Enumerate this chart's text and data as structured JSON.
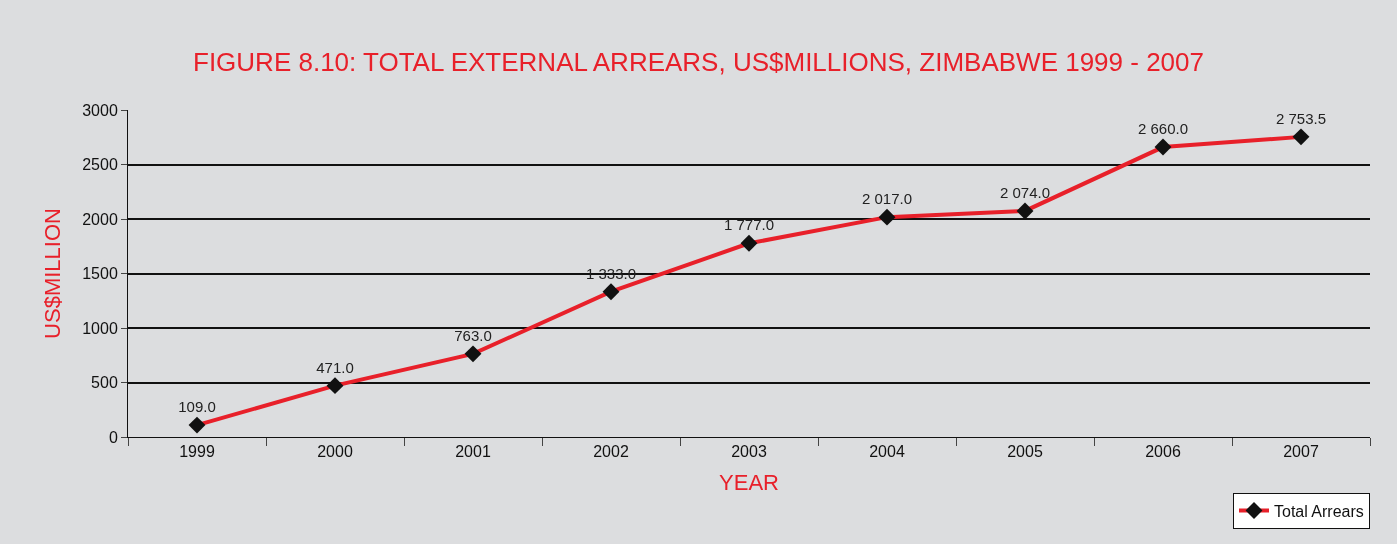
{
  "chart_data": {
    "type": "line",
    "title": "FIGURE 8.10: TOTAL EXTERNAL ARREARS, US$MILLIONS, ZIMBABWE 1999 - 2007",
    "xlabel": "YEAR",
    "ylabel": "US$MILLION",
    "categories": [
      "1999",
      "2000",
      "2001",
      "2002",
      "2003",
      "2004",
      "2005",
      "2006",
      "2007"
    ],
    "series": [
      {
        "name": "Total Arrears",
        "color": "#e8202a",
        "values": [
          109.0,
          471.0,
          763.0,
          1333.0,
          1777.0,
          2017.0,
          2074.0,
          2660.0,
          2753.5
        ],
        "value_labels": [
          "109.0",
          "471.0",
          "763.0",
          "1 333.0",
          "1 777.0",
          "2 017.0",
          "2 074.0",
          "2 660.0",
          "2 753.5"
        ]
      }
    ],
    "ylim": [
      0,
      3000
    ],
    "yticks": [
      0,
      500,
      1000,
      1500,
      2000,
      2500,
      3000
    ],
    "grid": "y",
    "legend": "bottom right",
    "marker": "diamond",
    "line_style": "solid"
  }
}
